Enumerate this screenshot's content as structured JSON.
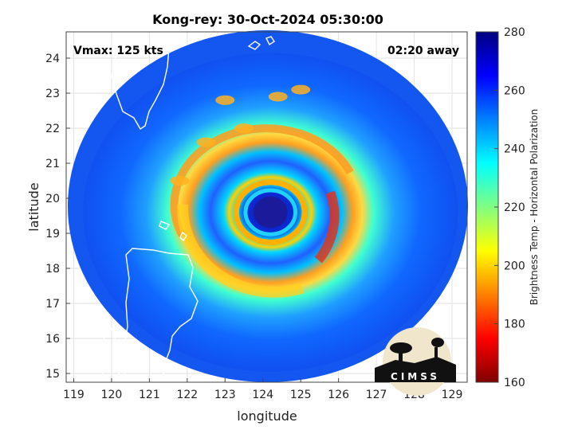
{
  "chart_data": {
    "type": "heatmap",
    "title": "Kong-rey: 30-Oct-2024 05:30:00",
    "annotation_left": "Vmax: 125 kts",
    "annotation_right": "02:20 away",
    "xlabel": "longitude",
    "ylabel": "latitude",
    "xlim": [
      118.8,
      129.4
    ],
    "ylim": [
      14.75,
      24.75
    ],
    "xticks": [
      119,
      120,
      121,
      122,
      123,
      124,
      125,
      126,
      127,
      128,
      129
    ],
    "yticks": [
      15,
      16,
      17,
      18,
      19,
      20,
      21,
      22,
      23,
      24
    ],
    "grid": true,
    "storm_center": {
      "lon": 124.2,
      "lat": 19.6
    },
    "eye_diameter_deg": 0.9,
    "eyewall_radius_deg": 1.1,
    "colorbar": {
      "label": "Brightness Temp - Horizontal Polarization",
      "range": [
        160,
        280
      ],
      "ticks": [
        160,
        180,
        200,
        220,
        240,
        260,
        280
      ],
      "colormap": [
        "#800000",
        "#ff0000",
        "#ff8000",
        "#ffff00",
        "#80ff80",
        "#00ffff",
        "#0080ff",
        "#0000ff",
        "#000080"
      ]
    },
    "logo_text": "CIMSS"
  }
}
